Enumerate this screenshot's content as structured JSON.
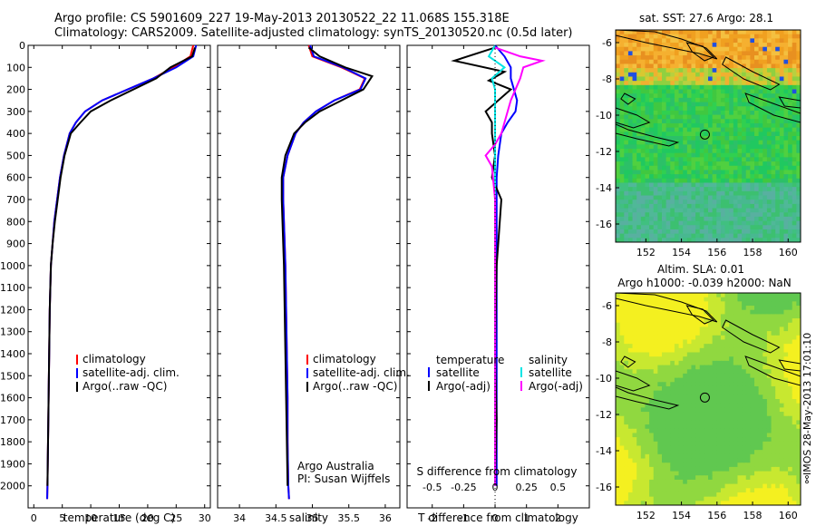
{
  "header": {
    "line1": "Argo profile: CS 5901609_227 19-May-2013 20130522_22 11.068S 155.318E",
    "line2": "Climatology: CARS2009. Satellite-adjusted climatology: synTS_20130520.nc (0.5d later)"
  },
  "colors": {
    "climatology": "#ff0000",
    "satellite": "#0000ff",
    "argo": "#000000",
    "sal_satellite": "#00e5e5",
    "sal_argo": "#ff00ff"
  },
  "chart_data": [
    {
      "type": "line",
      "panel": "temperature",
      "xlabel": "temperature (deg C)",
      "ylabel": "",
      "xlim": [
        -1,
        31
      ],
      "ylim": [
        2100,
        0
      ],
      "xticks": [
        0,
        5,
        10,
        15,
        20,
        25,
        30
      ],
      "yticks": [
        0,
        100,
        200,
        300,
        400,
        500,
        600,
        700,
        800,
        900,
        1000,
        1100,
        1200,
        1300,
        1400,
        1500,
        1600,
        1700,
        1800,
        1900,
        2000
      ],
      "legend": [
        "climatology",
        "satellite-adj. clim.",
        "Argo(..raw -QC)"
      ],
      "series": [
        {
          "name": "climatology",
          "color": "#ff0000",
          "x": [
            28.0,
            27.5,
            24.5,
            21.0,
            16.5,
            12.0,
            9.0,
            7.4,
            6.3,
            5.3,
            4.6,
            4.1,
            3.6,
            3.3,
            3.0,
            2.8,
            2.7,
            2.6,
            2.5,
            2.45,
            2.4,
            2.35
          ],
          "y": [
            0,
            50,
            100,
            150,
            200,
            250,
            300,
            350,
            400,
            500,
            600,
            700,
            800,
            900,
            1000,
            1200,
            1400,
            1600,
            1800,
            1900,
            2000,
            2060
          ]
        },
        {
          "name": "satellite-adj. clim.",
          "color": "#0000ff",
          "x": [
            28.5,
            28.0,
            25.0,
            21.0,
            16.5,
            12.0,
            9.0,
            7.4,
            6.3,
            5.3,
            4.6,
            4.1,
            3.6,
            3.3,
            3.0,
            2.8,
            2.7,
            2.6,
            2.5,
            2.45,
            2.4,
            2.35
          ],
          "y": [
            0,
            50,
            100,
            150,
            200,
            250,
            300,
            350,
            400,
            500,
            600,
            700,
            800,
            900,
            1000,
            1200,
            1400,
            1600,
            1800,
            1900,
            2000,
            2060
          ]
        },
        {
          "name": "Argo(..raw -QC)",
          "color": "#000000",
          "x": [
            28.3,
            27.8,
            24.0,
            21.5,
            17.5,
            13.5,
            10.0,
            8.2,
            6.5,
            5.4,
            4.7,
            4.2,
            3.7,
            3.3,
            3.0,
            2.8,
            2.7,
            2.6,
            2.5,
            2.45,
            2.4
          ],
          "y": [
            10,
            50,
            100,
            150,
            200,
            250,
            300,
            350,
            400,
            500,
            600,
            700,
            800,
            900,
            1000,
            1200,
            1400,
            1600,
            1800,
            1900,
            2000
          ]
        }
      ]
    },
    {
      "type": "line",
      "panel": "salinity",
      "xlabel": "salinity",
      "xlim": [
        33.7,
        36.2
      ],
      "ylim": [
        2100,
        0
      ],
      "xticks": [
        34,
        34.5,
        35,
        35.5,
        36
      ],
      "legend": [
        "climatology",
        "satellite-adj. clim.",
        "Argo(..raw -QC)"
      ],
      "annotation": [
        "Argo Australia",
        "PI: Susan Wijffels"
      ],
      "series": [
        {
          "name": "climatology",
          "color": "#ff0000",
          "x": [
            34.95,
            35.0,
            35.4,
            35.72,
            35.65,
            35.3,
            35.05,
            34.88,
            34.77,
            34.66,
            34.6,
            34.6,
            34.61,
            34.62,
            34.63,
            34.64,
            34.65,
            34.66,
            34.66,
            34.67,
            34.68
          ],
          "y": [
            0,
            50,
            100,
            150,
            200,
            250,
            300,
            350,
            400,
            500,
            600,
            700,
            800,
            900,
            1000,
            1200,
            1400,
            1600,
            1800,
            2000,
            2060
          ]
        },
        {
          "name": "satellite-adj. clim.",
          "color": "#0000ff",
          "x": [
            34.97,
            35.02,
            35.42,
            35.73,
            35.66,
            35.3,
            35.05,
            34.88,
            34.77,
            34.66,
            34.6,
            34.6,
            34.61,
            34.62,
            34.63,
            34.64,
            34.65,
            34.66,
            34.66,
            34.67,
            34.68
          ],
          "y": [
            0,
            50,
            100,
            150,
            200,
            250,
            300,
            350,
            400,
            500,
            600,
            700,
            800,
            900,
            1000,
            1200,
            1400,
            1600,
            1800,
            2000,
            2060
          ]
        },
        {
          "name": "Argo(..raw -QC)",
          "color": "#000000",
          "x": [
            34.95,
            35.1,
            35.45,
            35.82,
            35.7,
            35.4,
            35.1,
            34.9,
            34.75,
            34.63,
            34.58,
            34.58,
            34.59,
            34.6,
            34.61,
            34.62,
            34.63,
            34.64,
            34.65,
            34.66
          ],
          "y": [
            10,
            50,
            100,
            140,
            200,
            250,
            300,
            350,
            400,
            500,
            600,
            700,
            800,
            900,
            1000,
            1200,
            1400,
            1600,
            1800,
            2000
          ]
        }
      ]
    },
    {
      "type": "line",
      "panel": "difference",
      "xlabel": "T difference from climatology",
      "xlabel2": "S difference from climatology",
      "xlim": [
        -2.8,
        3.0
      ],
      "ylim": [
        2100,
        0
      ],
      "xticks": [
        -2,
        -1,
        0,
        1,
        2
      ],
      "xticks_salinity": [
        "-0.5",
        "-0.25",
        "0",
        "0.25",
        "0.5"
      ],
      "legend_temperature": [
        "temperature",
        "satellite",
        "Argo(-adj)"
      ],
      "legend_salinity": [
        "salinity",
        "satellite",
        "Argo(-adj)"
      ],
      "series": [
        {
          "name": "satellite",
          "color": "#0000ff",
          "x": [
            0.0,
            0.3,
            0.5,
            0.5,
            0.6,
            0.7,
            0.65,
            0.4,
            0.2,
            0.1,
            0.05,
            0.05,
            0.05,
            0.05,
            0.05,
            0.05,
            0.05
          ],
          "y": [
            0,
            50,
            100,
            150,
            200,
            250,
            300,
            350,
            400,
            500,
            600,
            700,
            800,
            900,
            1200,
            1600,
            2000
          ]
        },
        {
          "name": "Argo(-adj)",
          "color": "#000000",
          "x": [
            0.0,
            -1.3,
            0.3,
            -0.2,
            0.5,
            0.1,
            -0.3,
            -0.1,
            -0.1,
            0.0,
            -0.1,
            0.2,
            0.15,
            0.1,
            0.05,
            0.0,
            0.05,
            0.0
          ],
          "y": [
            10,
            70,
            120,
            160,
            200,
            250,
            300,
            350,
            400,
            500,
            600,
            700,
            800,
            900,
            1000,
            1400,
            1700,
            2000
          ]
        },
        {
          "name": "salinity satellite",
          "color": "#00e5e5",
          "x": [
            0.0,
            -0.2,
            0.3,
            -0.1,
            0.0,
            0.0,
            0.0,
            0.0,
            0.0,
            0.0,
            0.0,
            0.0,
            0.0,
            0.0
          ],
          "y": [
            0,
            50,
            100,
            150,
            200,
            300,
            400,
            500,
            600,
            800,
            1000,
            1400,
            1800,
            2000
          ]
        },
        {
          "name": "salinity Argo(-adj)",
          "color": "#ff00ff",
          "x": [
            0.0,
            0.8,
            1.5,
            0.9,
            0.8,
            0.5,
            0.3,
            0.2,
            0.0,
            -0.3,
            -0.1,
            0.0,
            0.0,
            0.0
          ],
          "y": [
            10,
            50,
            70,
            100,
            150,
            250,
            350,
            400,
            450,
            500,
            550,
            700,
            1000,
            2000
          ]
        }
      ]
    },
    {
      "type": "heatmap",
      "panel": "sst-map",
      "title": "sat. SST: 27.6  Argo: 28.1",
      "xticks": [
        "152",
        "154",
        "156",
        "158",
        "160"
      ],
      "yticks": [
        "-6",
        "-8",
        "-10",
        "-12",
        "-14",
        "-16"
      ],
      "xlim": [
        150.3,
        160.7
      ],
      "ylim": [
        -17.0,
        -5.3
      ],
      "marker": {
        "lon": 155.318,
        "lat": -11.068
      }
    },
    {
      "type": "heatmap",
      "panel": "sla-map",
      "title1": "Altim. SLA: 0.01",
      "title2": "Argo h1000: -0.039  h2000: NaN",
      "xticks": [
        "152",
        "154",
        "156",
        "158",
        "160"
      ],
      "yticks": [
        "-6",
        "-8",
        "-10",
        "-12",
        "-14",
        "-16"
      ],
      "xlim": [
        150.3,
        160.7
      ],
      "ylim": [
        -17.0,
        -5.3
      ],
      "marker": {
        "lon": 155.318,
        "lat": -11.068
      }
    }
  ],
  "footer": {
    "timestamp": "⚯IMOS 28-May-2013 17:01:10"
  }
}
